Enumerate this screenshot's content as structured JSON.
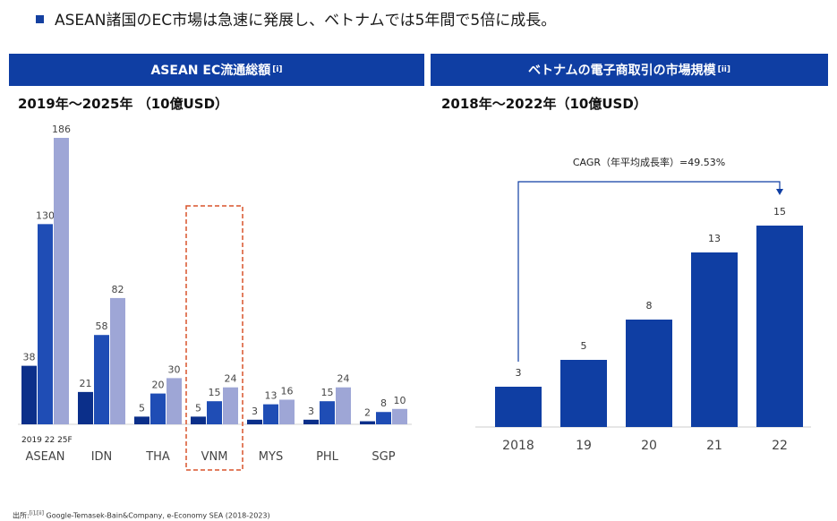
{
  "headline": "ASEAN諸国のEC市場は急速に発展し、ベトナムでは5年間で5倍に成長。",
  "colors": {
    "primary": "#0f3ea3",
    "dark": "#0b2f8a",
    "mid": "#1f4db5",
    "light": "#9ea6d6",
    "highlight": "#d9542b"
  },
  "left_panel": {
    "header": "ASEAN EC流通総額",
    "header_ref": "[i]",
    "subtitle": "2019年～2025年 （10億USD）"
  },
  "right_panel": {
    "header": "ベトナムの電子商取引の市場規模",
    "header_ref": "[ii]",
    "subtitle": "2018年～2022年（10億USD）"
  },
  "footnote": {
    "prefix": "出所:",
    "refs": "[i],[ii]",
    "text": "Google-Temasek-Bain&Company, e-Economy SEA (2018-2023)"
  },
  "chart_data": [
    {
      "type": "bar",
      "title": "ASEAN EC流通総額",
      "subtitle": "2019年～2025年 （10億USD）",
      "year_legend": "2019 22 25F",
      "highlight_category": "VNM",
      "categories": [
        "ASEAN",
        "IDN",
        "THA",
        "VNM",
        "MYS",
        "PHL",
        "SGP"
      ],
      "series": [
        {
          "name": "2019",
          "values": [
            38,
            21,
            5,
            5,
            3,
            3,
            2
          ]
        },
        {
          "name": "22",
          "values": [
            130,
            58,
            20,
            15,
            13,
            15,
            8
          ]
        },
        {
          "name": "25F",
          "values": [
            186,
            82,
            30,
            24,
            16,
            24,
            10
          ]
        }
      ],
      "ylim": [
        0,
        186
      ]
    },
    {
      "type": "bar",
      "title": "ベトナムの電子商取引の市場規模",
      "subtitle": "2018年～2022年（10億USD）",
      "annotation": "CAGR（年平均成長率）=49.53%",
      "categories": [
        "2018",
        "19",
        "20",
        "21",
        "22"
      ],
      "values": [
        3,
        5,
        8,
        13,
        15
      ],
      "ylim": [
        0,
        15
      ]
    }
  ]
}
